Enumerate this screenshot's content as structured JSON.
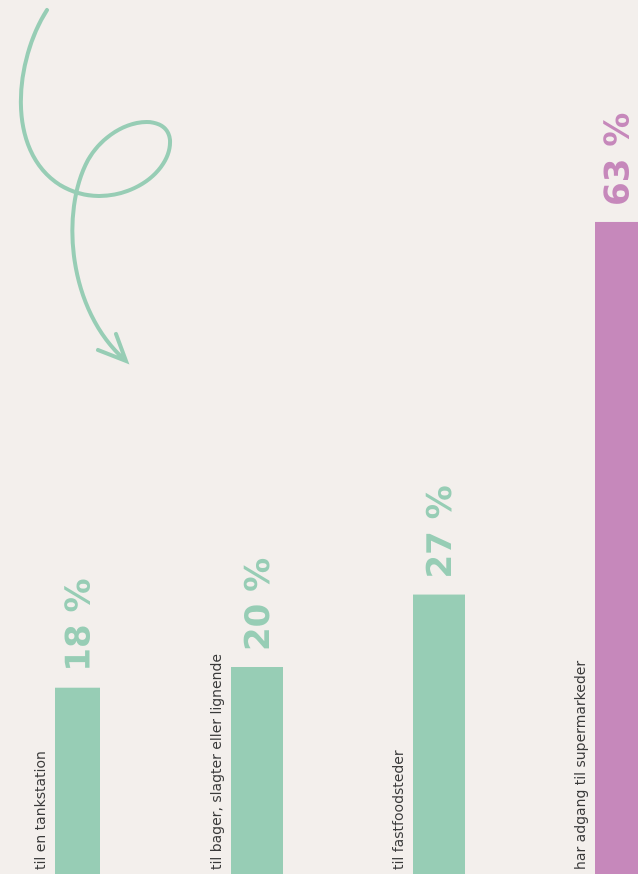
{
  "chart_data": {
    "type": "bar",
    "categories": [
      "til en tankstation",
      "til bager, slagter eller lignende",
      "til fastfoodsteder",
      "har adgang til supermarkeder"
    ],
    "values": [
      18,
      20,
      27,
      63
    ],
    "value_labels": [
      "18 %",
      "20 %",
      "27 %",
      "63 %"
    ],
    "colors": [
      "#97cdb5",
      "#97cdb5",
      "#97cdb5",
      "#c688bb"
    ]
  }
}
